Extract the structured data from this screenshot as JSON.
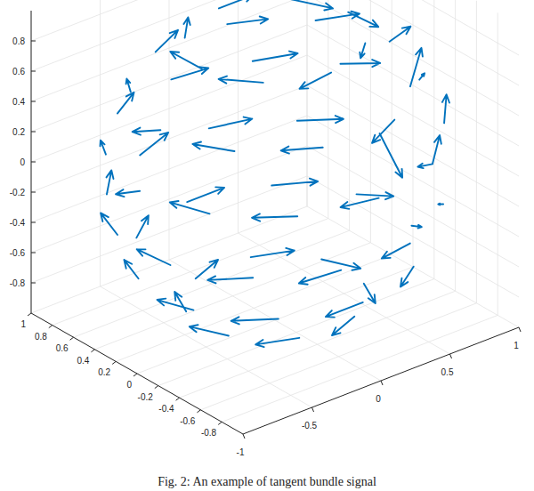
{
  "chart_data": {
    "type": "quiver3",
    "title": "Fig. 2: An example of tangent bundle signal",
    "xlim": [
      -1,
      1
    ],
    "ylim": [
      -1,
      1
    ],
    "zlim": [
      -1,
      1
    ],
    "xticks": [
      -1,
      -0.5,
      0,
      0.5,
      1
    ],
    "yticks": [
      -0.8,
      -0.6,
      -0.4,
      -0.2,
      0,
      0.2,
      0.4,
      0.6,
      0.8,
      1
    ],
    "zticks": [
      -0.8,
      -0.6,
      -0.4,
      -0.2,
      0,
      0.2,
      0.4,
      0.6,
      0.8
    ],
    "grid": true,
    "series": [
      {
        "color": "#0072bd",
        "x": [
          0.53,
          0.37,
          0.0,
          -0.37,
          -0.53,
          -0.37,
          0.0,
          0.37,
          0.83,
          0.67,
          0.26,
          -0.26,
          -0.67,
          -0.83,
          -0.67,
          -0.26,
          0.26,
          0.67,
          0.98,
          0.85,
          0.49,
          0.0,
          -0.49,
          -0.85,
          -0.98,
          -0.85,
          -0.49,
          0.0,
          0.49,
          0.85,
          0.95,
          0.69,
          0.25,
          -0.25,
          -0.69,
          -0.95,
          -0.95,
          -0.69,
          -0.25,
          0.25,
          0.69,
          0.95,
          0.79,
          0.49,
          0.0,
          -0.49,
          -0.79,
          -0.79,
          -0.49,
          0.0,
          0.49,
          0.79,
          0.49,
          0.2,
          -0.2,
          -0.49,
          -0.49,
          -0.2,
          0.2,
          0.49
        ],
        "y": [
          0.0,
          0.37,
          0.53,
          0.37,
          0.0,
          -0.37,
          -0.53,
          -0.37,
          0.0,
          0.49,
          0.79,
          0.79,
          0.49,
          0.0,
          -0.49,
          -0.79,
          -0.79,
          -0.49,
          0.0,
          0.49,
          0.85,
          0.98,
          0.85,
          0.49,
          0.0,
          -0.49,
          -0.85,
          -0.98,
          -0.85,
          -0.49,
          0.25,
          0.69,
          0.95,
          0.95,
          0.69,
          0.25,
          -0.25,
          -0.69,
          -0.95,
          -0.95,
          -0.69,
          -0.25,
          0.26,
          0.67,
          0.83,
          0.67,
          0.26,
          -0.26,
          -0.67,
          -0.83,
          -0.67,
          -0.26,
          0.2,
          0.49,
          0.49,
          0.2,
          -0.2,
          -0.49,
          -0.49,
          -0.2
        ],
        "z": [
          0.85,
          0.85,
          0.85,
          0.85,
          0.85,
          0.85,
          0.85,
          0.85,
          0.55,
          0.55,
          0.55,
          0.55,
          0.55,
          0.55,
          0.55,
          0.55,
          0.55,
          0.55,
          0.2,
          0.2,
          0.2,
          0.2,
          0.2,
          0.2,
          0.2,
          0.2,
          0.2,
          0.2,
          0.2,
          0.2,
          -0.2,
          -0.2,
          -0.2,
          -0.2,
          -0.2,
          -0.2,
          -0.2,
          -0.2,
          -0.2,
          -0.2,
          -0.2,
          -0.2,
          -0.55,
          -0.55,
          -0.55,
          -0.55,
          -0.55,
          -0.55,
          -0.55,
          -0.55,
          -0.55,
          -0.55,
          -0.85,
          -0.85,
          -0.85,
          -0.85,
          -0.85,
          -0.85,
          -0.85,
          -0.85
        ],
        "u": [
          0.02,
          0.18,
          0.27,
          0.17,
          -0.03,
          -0.2,
          -0.26,
          -0.18,
          0.0,
          0.15,
          0.25,
          0.24,
          0.14,
          -0.02,
          -0.15,
          -0.25,
          -0.24,
          -0.1,
          0.02,
          0.12,
          0.22,
          0.27,
          0.22,
          0.13,
          0.01,
          -0.12,
          -0.23,
          -0.27,
          -0.2,
          -0.06,
          0.05,
          0.19,
          0.26,
          0.26,
          0.18,
          0.07,
          -0.06,
          -0.19,
          -0.26,
          -0.26,
          -0.16,
          -0.04,
          0.1,
          0.22,
          0.27,
          0.21,
          0.08,
          -0.08,
          -0.22,
          -0.27,
          -0.21,
          -0.08,
          0.1,
          0.24,
          0.24,
          0.1,
          -0.1,
          -0.24,
          -0.24,
          -0.1
        ],
        "v": [
          -0.26,
          -0.2,
          0.03,
          0.19,
          0.26,
          0.16,
          -0.04,
          -0.19,
          -0.2,
          -0.22,
          -0.06,
          0.1,
          0.22,
          0.24,
          0.2,
          0.07,
          -0.1,
          -0.18,
          -0.08,
          -0.22,
          -0.14,
          0.0,
          0.13,
          0.22,
          0.24,
          0.22,
          0.13,
          0.01,
          -0.12,
          -0.1,
          -0.15,
          -0.19,
          -0.07,
          0.07,
          0.19,
          0.25,
          0.24,
          0.18,
          0.06,
          -0.07,
          -0.16,
          -0.12,
          -0.22,
          -0.15,
          0.0,
          0.16,
          0.24,
          0.24,
          0.16,
          0.0,
          -0.15,
          -0.2,
          -0.24,
          -0.1,
          0.1,
          0.24,
          0.24,
          0.1,
          -0.1,
          -0.24
        ],
        "w": [
          0.0,
          -0.05,
          -0.02,
          0.0,
          0.02,
          0.03,
          0.0,
          0.04,
          0.18,
          0.08,
          -0.03,
          0.02,
          -0.05,
          -0.1,
          0.02,
          0.04,
          -0.03,
          0.15,
          0.28,
          0.05,
          0.03,
          -0.02,
          0.01,
          -0.04,
          -0.12,
          0.03,
          0.02,
          0.03,
          0.1,
          0.25,
          -0.25,
          0.02,
          0.0,
          0.03,
          0.02,
          0.02,
          0.03,
          -0.02,
          -0.02,
          0.02,
          0.12,
          0.25,
          0.04,
          0.01,
          0.0,
          0.01,
          0.0,
          0.0,
          0.0,
          0.0,
          0.0,
          0.1,
          0.0,
          0.0,
          0.0,
          0.0,
          0.0,
          0.0,
          0.0,
          0.0
        ]
      }
    ]
  }
}
